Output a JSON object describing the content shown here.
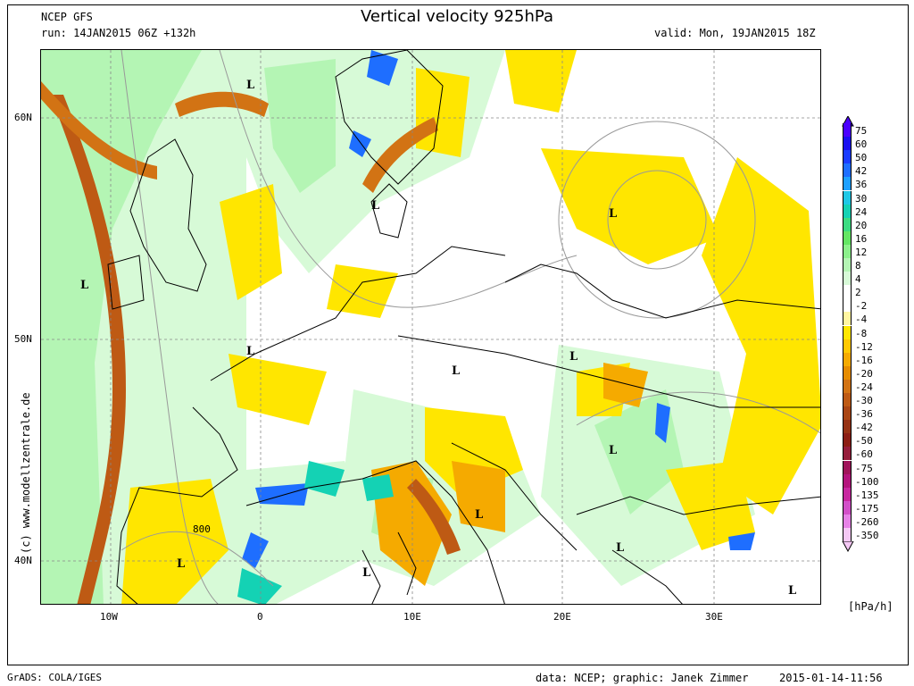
{
  "header": {
    "model": "NCEP GFS",
    "run": "run: 14JAN2015 06Z +132h",
    "title": "Vertical velocity 925hPa",
    "valid": "valid: Mon, 19JAN2015 18Z"
  },
  "axes": {
    "lat_labels": [
      "60N",
      "50N",
      "40N"
    ],
    "lon_labels": [
      "10W",
      "0",
      "10E",
      "20E",
      "30E"
    ]
  },
  "legend": {
    "unit": "[hPa/h]",
    "levels": [
      "75",
      "60",
      "50",
      "42",
      "36",
      "30",
      "24",
      "20",
      "16",
      "12",
      "8",
      "4",
      "2",
      "-2",
      "-4",
      "-8",
      "-12",
      "-16",
      "-20",
      "-24",
      "-30",
      "-36",
      "-42",
      "-50",
      "-60",
      "-75",
      "-100",
      "-135",
      "-175",
      "-260",
      "-350"
    ],
    "colors": [
      "#4b00ff",
      "#1a0ff0",
      "#1a3cff",
      "#1e6eff",
      "#1ea0ff",
      "#1ec8e6",
      "#14d2b4",
      "#3cdc82",
      "#64e664",
      "#8cf08c",
      "#b4f5b4",
      "#d7fad7",
      "#ffffff",
      "#ffffff",
      "#fff5a0",
      "#ffe600",
      "#ffc800",
      "#f5aa00",
      "#e68c00",
      "#d27314",
      "#be5a14",
      "#aa4614",
      "#963214",
      "#8c1e14",
      "#961e3c",
      "#a0145a",
      "#b4147d",
      "#c828a0",
      "#d250c8",
      "#e682e6",
      "#f5c8f5"
    ]
  },
  "map": {
    "low_marker": "L",
    "contour_label": "800",
    "colors": {
      "ocean_green": "#b4f5b4",
      "light_green": "#d7fad7",
      "yellow": "#ffe600",
      "orange": "#d27314",
      "brown": "#be5a14",
      "blue": "#1e6eff",
      "dark_blue": "#1a0ff0"
    }
  },
  "footer": {
    "left": "GrADS: COLA/IGES",
    "credit": "data: NCEP; graphic: Janek Zimmer",
    "timestamp": "2015-01-14-11:56",
    "vertical": "(c) www.modellzentrale.de"
  }
}
